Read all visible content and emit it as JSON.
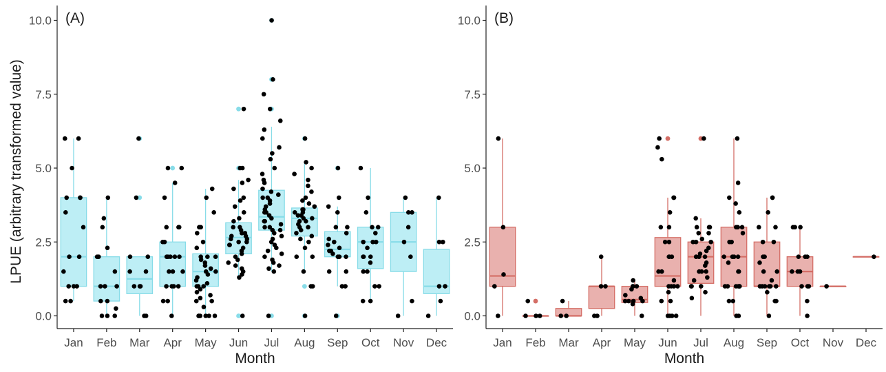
{
  "figure": {
    "ylabel": "LPUE (arbitrary transformed value)"
  },
  "chart_data": [
    {
      "type": "box",
      "panel_label": "(A)",
      "xlabel": "Month",
      "ylabel": "LPUE (arbitrary transformed value)",
      "ylim": [
        0,
        10
      ],
      "yticks": [
        "0.0",
        "2.5",
        "5.0",
        "7.5",
        "10.0"
      ],
      "grid": false,
      "box_color": "#bdeef5",
      "box_stroke": "#88dce8",
      "categories": [
        "Jan",
        "Feb",
        "Mar",
        "Apr",
        "May",
        "Jun",
        "Jul",
        "Aug",
        "Sep",
        "Oct",
        "Nov",
        "Dec"
      ],
      "boxes": [
        {
          "min": 0.5,
          "q1": 1.0,
          "median": 2.0,
          "q3": 4.0,
          "max": 6.0,
          "outliers": []
        },
        {
          "min": 0.0,
          "q1": 0.5,
          "median": 1.0,
          "q3": 2.0,
          "max": 4.0,
          "outliers": []
        },
        {
          "min": 0.0,
          "q1": 0.75,
          "median": 1.25,
          "q3": 2.0,
          "max": 2.0,
          "outliers": [
            4.0,
            6.0
          ]
        },
        {
          "min": 0.0,
          "q1": 1.0,
          "median": 2.0,
          "q3": 2.5,
          "max": 4.5,
          "outliers": [
            5.0
          ]
        },
        {
          "min": 0.0,
          "q1": 1.0,
          "median": 1.5,
          "q3": 2.1,
          "max": 4.3,
          "outliers": []
        },
        {
          "min": 1.3,
          "q1": 2.1,
          "median": 2.65,
          "q3": 3.15,
          "max": 4.6,
          "outliers": [
            0.0,
            5.0,
            7.0
          ]
        },
        {
          "min": 1.5,
          "q1": 2.9,
          "median": 3.35,
          "q3": 4.25,
          "max": 6.4,
          "outliers": [
            0.0,
            7.0,
            8.0,
            10.0
          ]
        },
        {
          "min": 1.5,
          "q1": 2.7,
          "median": 3.3,
          "q3": 3.65,
          "max": 5.2,
          "outliers": [
            0.0,
            1.0,
            6.0
          ]
        },
        {
          "min": 1.0,
          "q1": 2.0,
          "median": 2.25,
          "q3": 2.85,
          "max": 3.7,
          "outliers": [
            0.0,
            5.0
          ]
        },
        {
          "min": 0.5,
          "q1": 1.6,
          "median": 2.5,
          "q3": 3.0,
          "max": 5.0,
          "outliers": []
        },
        {
          "min": 0.0,
          "q1": 1.5,
          "median": 2.5,
          "q3": 3.5,
          "max": 4.0,
          "outliers": []
        },
        {
          "min": 0.0,
          "q1": 0.75,
          "median": 1.0,
          "q3": 2.25,
          "max": 4.0,
          "outliers": []
        }
      ],
      "points": [
        [
          6.0,
          6.0,
          5.0,
          4.0,
          4.0,
          4.0,
          3.5,
          3.0,
          2.0,
          2.0,
          1.5,
          1.0,
          1.0,
          1.0,
          0.5,
          0.5
        ],
        [
          4.0,
          3.3,
          3.0,
          2.3,
          2.0,
          2.0,
          1.5,
          1.0,
          1.0,
          1.0,
          0.5,
          0.5,
          0.25,
          0.0,
          0.0,
          0.0
        ],
        [
          6.0,
          4.0,
          2.0,
          2.0,
          1.5,
          1.5,
          1.0,
          1.0,
          1.0,
          0.0,
          0.0
        ],
        [
          5.0,
          5.0,
          4.5,
          4.0,
          3.0,
          3.0,
          3.0,
          2.5,
          2.5,
          2.0,
          2.0,
          2.0,
          2.0,
          2.0,
          1.5,
          1.5,
          1.5,
          1.0,
          1.0,
          1.0,
          1.0,
          0.5,
          0.5,
          0.0
        ],
        [
          4.3,
          4.0,
          3.5,
          3.0,
          3.0,
          2.8,
          2.5,
          2.3,
          2.0,
          2.0,
          2.0,
          1.9,
          1.8,
          1.7,
          1.6,
          1.5,
          1.5,
          1.4,
          1.3,
          1.2,
          1.1,
          1.0,
          1.0,
          1.0,
          0.9,
          0.8,
          0.7,
          0.6,
          0.5,
          0.5,
          0.3,
          0.0,
          0.0,
          0.0,
          0.0,
          0.0,
          0.0
        ],
        [
          7.0,
          5.0,
          5.0,
          4.6,
          4.5,
          4.3,
          4.0,
          3.9,
          3.7,
          3.5,
          3.3,
          3.2,
          3.0,
          3.0,
          2.9,
          2.8,
          2.8,
          2.7,
          2.7,
          2.6,
          2.6,
          2.5,
          2.5,
          2.4,
          2.4,
          2.3,
          2.2,
          2.1,
          2.0,
          1.9,
          1.8,
          1.7,
          1.6,
          1.5,
          1.4,
          1.3,
          0.0
        ],
        [
          10.0,
          8.0,
          7.5,
          7.0,
          6.6,
          6.3,
          6.0,
          5.7,
          5.5,
          5.3,
          5.0,
          4.8,
          4.6,
          4.5,
          4.3,
          4.2,
          4.1,
          4.0,
          4.0,
          3.9,
          3.8,
          3.7,
          3.6,
          3.5,
          3.5,
          3.4,
          3.3,
          3.2,
          3.2,
          3.1,
          3.0,
          3.0,
          2.9,
          2.9,
          2.8,
          2.7,
          2.6,
          2.5,
          2.4,
          2.3,
          2.2,
          2.1,
          2.0,
          1.9,
          1.8,
          1.7,
          1.6,
          1.5,
          0.0
        ],
        [
          6.0,
          5.2,
          5.0,
          4.8,
          4.6,
          4.4,
          4.2,
          4.0,
          3.9,
          3.8,
          3.7,
          3.6,
          3.6,
          3.5,
          3.5,
          3.4,
          3.4,
          3.3,
          3.3,
          3.2,
          3.2,
          3.1,
          3.0,
          3.0,
          2.9,
          2.8,
          2.7,
          2.6,
          2.5,
          2.3,
          2.0,
          2.0,
          1.5,
          1.0,
          1.0,
          0.0
        ],
        [
          5.0,
          4.0,
          3.7,
          3.5,
          3.0,
          3.0,
          2.8,
          2.6,
          2.5,
          2.4,
          2.3,
          2.2,
          2.2,
          2.1,
          2.0,
          2.0,
          2.0,
          1.5,
          1.5,
          1.0,
          1.0,
          0.0
        ],
        [
          5.0,
          4.0,
          3.5,
          3.0,
          3.0,
          2.8,
          2.5,
          2.5,
          2.5,
          2.3,
          2.0,
          2.0,
          2.0,
          1.8,
          1.5,
          1.5,
          1.0,
          1.0,
          0.5,
          0.5
        ],
        [
          4.0,
          3.5,
          3.5,
          3.0,
          2.5,
          2.0,
          0.5,
          0.0
        ],
        [
          4.0,
          2.5,
          2.5,
          1.0,
          1.0,
          0.5,
          0.0
        ]
      ]
    },
    {
      "type": "box",
      "panel_label": "(B)",
      "xlabel": "Month",
      "ylabel": "",
      "ylim": [
        0,
        10
      ],
      "yticks": [
        "0.0",
        "2.5",
        "5.0",
        "7.5",
        "10.0"
      ],
      "grid": false,
      "box_color": "#e9b1ae",
      "box_stroke": "#d46e66",
      "categories": [
        "Jan",
        "Feb",
        "Mar",
        "Apr",
        "May",
        "Jun",
        "Jul",
        "Aug",
        "Sep",
        "Oct",
        "Nov",
        "Dec"
      ],
      "boxes": [
        {
          "min": 0.0,
          "q1": 1.0,
          "median": 1.35,
          "q3": 3.0,
          "max": 6.0,
          "outliers": []
        },
        {
          "min": 0.0,
          "q1": 0.0,
          "median": 0.0,
          "q3": 0.0,
          "max": 0.0,
          "outliers": [
            0.5
          ]
        },
        {
          "min": 0.0,
          "q1": 0.0,
          "median": 0.0,
          "q3": 0.25,
          "max": 0.5,
          "outliers": []
        },
        {
          "min": 0.0,
          "q1": 0.25,
          "median": 1.0,
          "q3": 1.0,
          "max": 2.0,
          "outliers": []
        },
        {
          "min": 0.0,
          "q1": 0.45,
          "median": 0.55,
          "q3": 1.0,
          "max": 1.2,
          "outliers": []
        },
        {
          "min": 0.0,
          "q1": 1.0,
          "median": 1.35,
          "q3": 2.65,
          "max": 4.0,
          "outliers": [
            6.0
          ]
        },
        {
          "min": 0.0,
          "q1": 1.1,
          "median": 2.0,
          "q3": 2.5,
          "max": 3.3,
          "outliers": [
            6.0
          ]
        },
        {
          "min": 0.0,
          "q1": 1.0,
          "median": 2.0,
          "q3": 3.0,
          "max": 6.0,
          "outliers": []
        },
        {
          "min": 0.0,
          "q1": 1.0,
          "median": 1.0,
          "q3": 2.5,
          "max": 4.0,
          "outliers": []
        },
        {
          "min": 0.0,
          "q1": 1.0,
          "median": 1.5,
          "q3": 2.0,
          "max": 3.0,
          "outliers": []
        },
        {
          "min": 1.0,
          "q1": 1.0,
          "median": 1.0,
          "q3": 1.0,
          "max": 1.0,
          "outliers": []
        },
        {
          "min": 2.0,
          "q1": 2.0,
          "median": 2.0,
          "q3": 2.0,
          "max": 2.0,
          "outliers": []
        }
      ],
      "points": [
        [
          6.0,
          3.0,
          1.4,
          1.0,
          0.0
        ],
        [
          0.5,
          0.0,
          0.0,
          0.0
        ],
        [
          0.5,
          0.0,
          0.0
        ],
        [
          2.0,
          1.0,
          1.0,
          0.0,
          0.0
        ],
        [
          1.2,
          1.0,
          1.0,
          1.0,
          0.9,
          0.7,
          0.6,
          0.5,
          0.5,
          0.5,
          0.5,
          0.4,
          0.0
        ],
        [
          6.0,
          5.7,
          5.3,
          4.0,
          4.0,
          3.5,
          3.0,
          3.0,
          2.5,
          2.5,
          2.0,
          2.0,
          2.0,
          1.5,
          1.5,
          1.2,
          1.0,
          1.0,
          1.0,
          1.0,
          0.8,
          0.5,
          0.5,
          0.0,
          0.0,
          0.0,
          0.0
        ],
        [
          6.0,
          3.3,
          3.0,
          3.0,
          3.0,
          2.8,
          2.8,
          2.6,
          2.5,
          2.5,
          2.5,
          2.3,
          2.2,
          2.1,
          2.0,
          2.0,
          2.0,
          2.0,
          1.8,
          1.7,
          1.5,
          1.5,
          1.5,
          1.3,
          1.2,
          1.0,
          1.0,
          1.0,
          0.8,
          0.6
        ],
        [
          6.0,
          4.5,
          4.0,
          3.8,
          3.5,
          3.0,
          3.0,
          3.0,
          2.8,
          2.5,
          2.5,
          2.0,
          2.0,
          2.0,
          2.0,
          1.8,
          1.5,
          1.5,
          1.0,
          1.0,
          1.0,
          1.0,
          1.0,
          1.0,
          0.5,
          0.5,
          0.0,
          0.0
        ],
        [
          4.0,
          4.0,
          3.5,
          3.0,
          3.0,
          2.5,
          2.5,
          2.0,
          2.0,
          1.8,
          1.5,
          1.5,
          1.2,
          1.0,
          1.0,
          1.0,
          1.0,
          1.0,
          1.0,
          0.8,
          0.5,
          0.5,
          0.0
        ],
        [
          3.0,
          3.0,
          3.0,
          2.0,
          2.0,
          2.0,
          1.5,
          1.5,
          1.5,
          1.0,
          1.0,
          1.0,
          0.5,
          0.0
        ],
        [
          1.0
        ],
        [
          2.0
        ]
      ]
    }
  ]
}
